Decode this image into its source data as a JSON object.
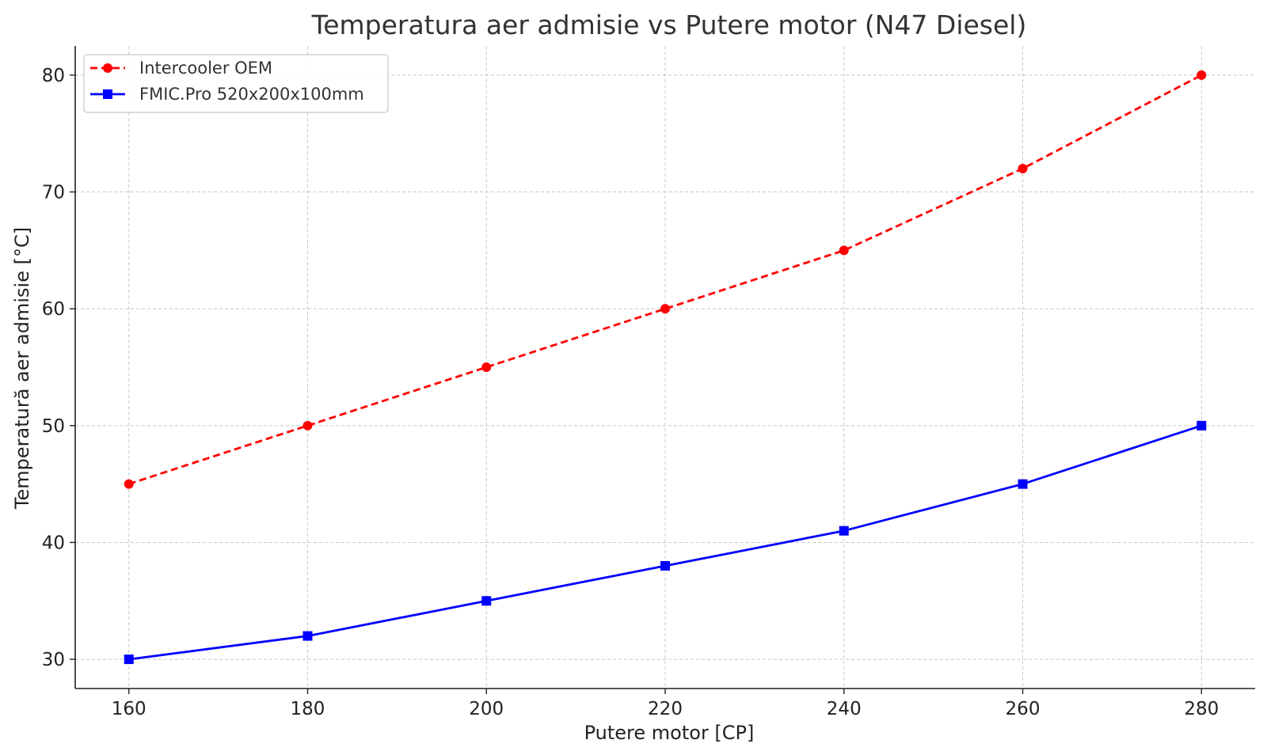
{
  "chart_data": {
    "type": "line",
    "title": "Temperatura aer admisie vs Putere motor (N47 Diesel)",
    "xlabel": "Putere motor [CP]",
    "ylabel": "Temperatură aer admisie [°C]",
    "x": [
      160,
      180,
      200,
      220,
      240,
      260,
      280
    ],
    "x_ticks": [
      160,
      180,
      200,
      220,
      240,
      260,
      280
    ],
    "y_ticks": [
      30,
      40,
      50,
      60,
      70,
      80
    ],
    "xlim": [
      154,
      286
    ],
    "ylim": [
      27.5,
      82.5
    ],
    "grid": true,
    "legend_position": "top-left",
    "series": [
      {
        "name": "Intercooler OEM",
        "values": [
          45,
          50,
          55,
          60,
          65,
          72,
          80
        ],
        "color": "#ff0000",
        "line_style": "dashed",
        "marker": "circle"
      },
      {
        "name": "FMIC.Pro 520x200x100mm",
        "values": [
          30,
          32,
          35,
          38,
          41,
          45,
          50
        ],
        "color": "#0000ff",
        "line_style": "solid",
        "marker": "square"
      }
    ]
  }
}
